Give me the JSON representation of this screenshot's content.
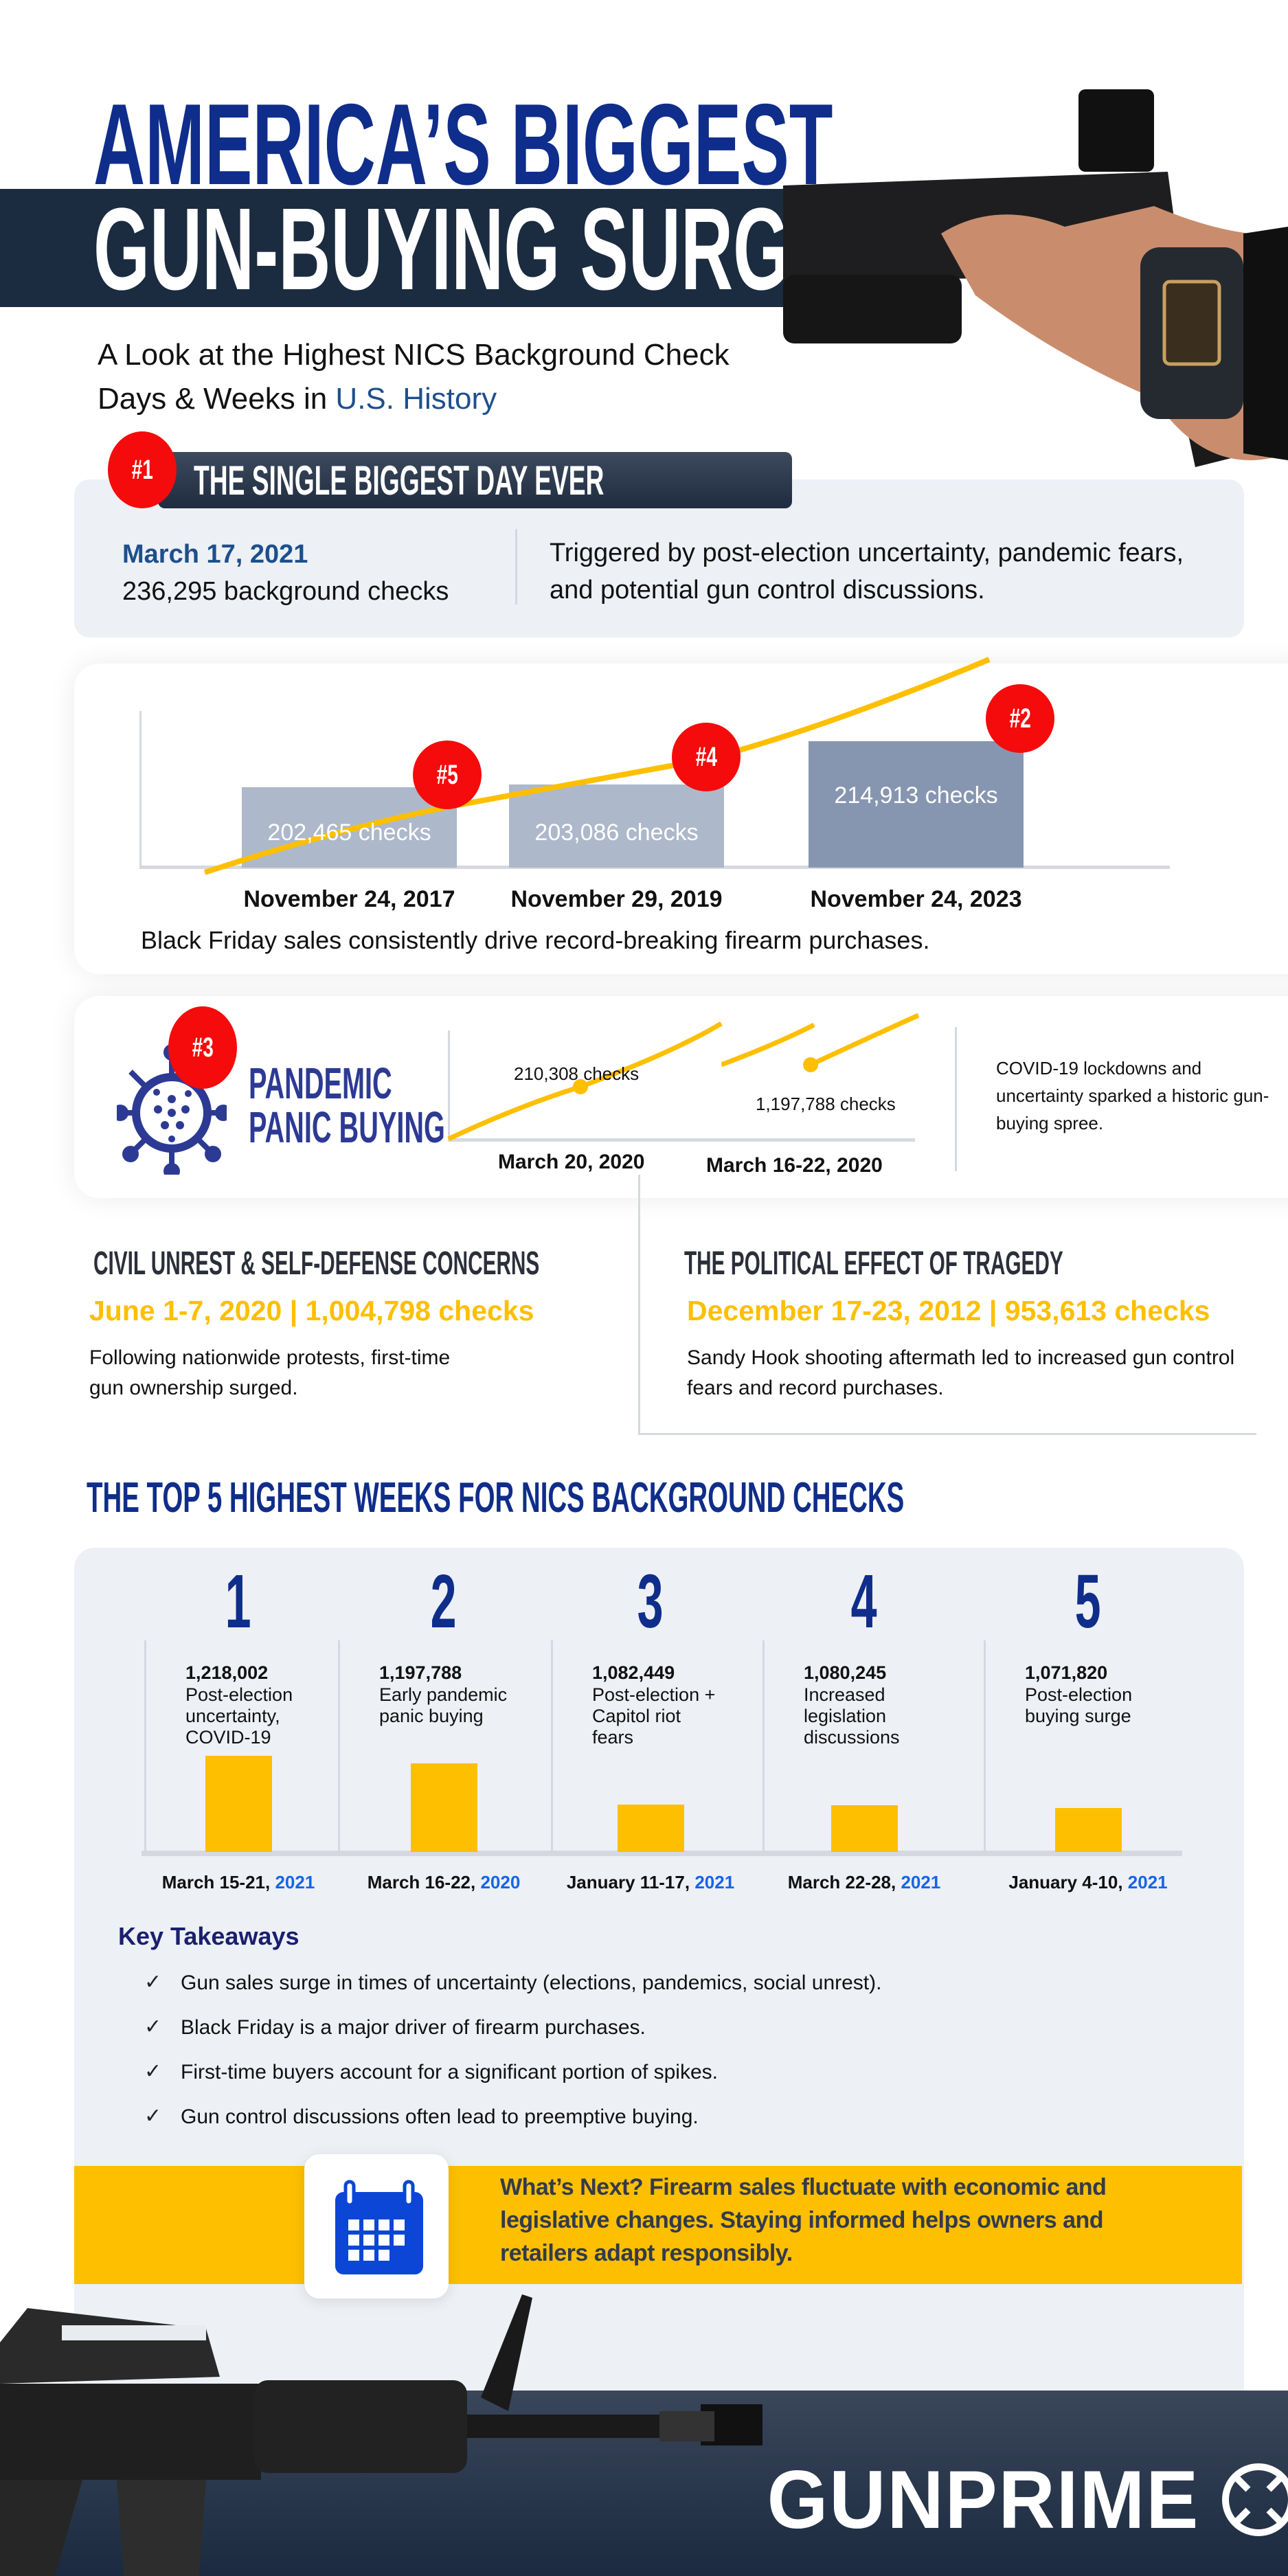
{
  "header": {
    "title_line1": "AMERICA’S BIGGEST",
    "title_line2": "GUN-BUYING SURGES",
    "subtitle_part1": "A Look at the Highest NICS Background Check",
    "subtitle_part2": "Days & Weeks in ",
    "subtitle_highlight": "U.S. History"
  },
  "colors": {
    "navy": "#0f2d8a",
    "dark_band": "#1b2b40",
    "red": "#f50b0b",
    "yellow": "#fdbf00",
    "panel": "#edf0f5",
    "link_blue": "#1565e8"
  },
  "biggest_day": {
    "badge": "#1",
    "heading": "THE SINGLE BIGGEST DAY EVER",
    "date": "March 17, 2021",
    "checks": "236,295 background checks",
    "description": "Triggered by post-election uncertainty, pandemic fears, and potential gun control discussions."
  },
  "black_friday": {
    "caption": "Black Friday sales consistently drive record-breaking firearm purchases.",
    "chart_data": {
      "type": "bar",
      "categories": [
        "November 24, 2017",
        "November 29, 2019",
        "November 24, 2023"
      ],
      "values": [
        202465,
        203086,
        214913
      ],
      "labels": [
        "202,465  checks",
        "203,086 checks",
        "214,913 checks"
      ],
      "badges": [
        "#5",
        "#4",
        "#2"
      ]
    }
  },
  "pandemic": {
    "badge": "#3",
    "title_line1": "PANDEMIC",
    "title_line2": "PANIC BUYING",
    "icon": "virus-icon",
    "description": "COVID-19 lockdowns and uncertainty sparked a historic gun-buying spree.",
    "chart_data": {
      "type": "line",
      "categories": [
        "March 20, 2020",
        "March 16-22, 2020"
      ],
      "labels": [
        "210,308 checks",
        "1,197,788 checks"
      ]
    }
  },
  "civil_unrest": {
    "heading": "CIVIL UNREST & SELF-DEFENSE CONCERNS",
    "stat": "June 1-7, 2020 | 1,004,798 checks",
    "description": "Following nationwide protests, first-time gun ownership surged."
  },
  "tragedy": {
    "heading": "THE POLITICAL EFFECT OF TRAGEDY",
    "stat": "December 17-23, 2012 | 953,613 checks",
    "description": "Sandy Hook shooting aftermath led to increased gun control fears and record purchases."
  },
  "top5": {
    "heading": "THE TOP 5 HIGHEST WEEKS FOR NICS BACKGROUND CHECKS",
    "chart_data": {
      "type": "bar",
      "ranks": [
        "1",
        "2",
        "3",
        "4",
        "5"
      ],
      "values": [
        1218002,
        1197788,
        1082449,
        1080245,
        1071820
      ],
      "value_labels": [
        "1,218,002",
        "1,197,788",
        "1,082,449",
        "1,080,245",
        "1,071,820"
      ],
      "reasons": [
        "Post-election uncertainty, COVID-19",
        "Early pandemic panic buying",
        "Post-election + Capitol riot fears",
        "Increased legislation discussions",
        "Post-election buying surge"
      ],
      "dates": [
        "March 15-21, ",
        "March 16-22, ",
        "January 11-17, ",
        "March 22-28, ",
        "January 4-10, "
      ],
      "years": [
        "2021",
        "2020",
        "2021",
        "2021",
        "2021"
      ]
    }
  },
  "takeaways": {
    "heading": "Key Takeaways",
    "items": [
      "Gun sales surge in times of uncertainty (elections, pandemics, social unrest).",
      "Black Friday is a major driver of firearm purchases.",
      "First-time buyers account for a significant portion of spikes.",
      "Gun control discussions often lead to preemptive buying."
    ],
    "check": "✓"
  },
  "whats_next": {
    "icon": "calendar-icon",
    "text": "What’s Next? Firearm sales fluctuate with economic and legislative changes. Staying informed helps owners and retailers adapt responsibly."
  },
  "footer": {
    "logo": "GUNPRIME"
  }
}
